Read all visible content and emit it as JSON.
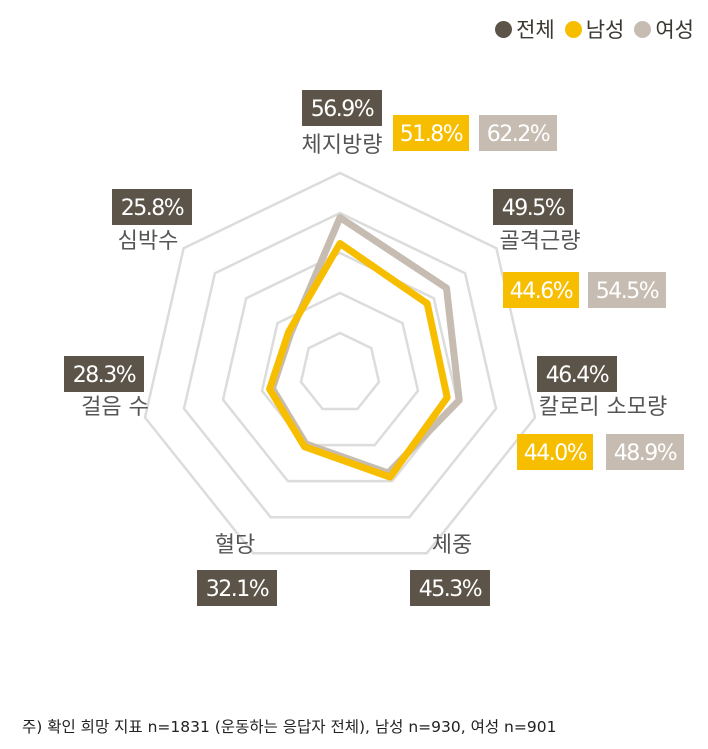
{
  "legend": [
    {
      "label": "전체",
      "color": "#5c5448"
    },
    {
      "label": "남성",
      "color": "#f7be00"
    },
    {
      "label": "여성",
      "color": "#c6bcb1"
    }
  ],
  "chart_data": {
    "type": "radar",
    "axes": [
      "체지방량",
      "골격근량",
      "칼로리 소모량",
      "체중",
      "혈당",
      "걸음 수",
      "심박수"
    ],
    "rmax": 80,
    "grid_levels": 5,
    "series": [
      {
        "name": "전체",
        "color": "#5c5448",
        "values": [
          56.9,
          49.5,
          46.4,
          45.3,
          32.1,
          28.3,
          25.8
        ],
        "labels": [
          "56.9%",
          "49.5%",
          "46.4%",
          "45.3%",
          "32.1%",
          "28.3%",
          "25.8%"
        ],
        "show_line": false
      },
      {
        "name": "남성",
        "color": "#f7be00",
        "values": [
          51.8,
          44.6,
          44.0,
          null,
          null,
          null,
          null
        ],
        "labels": [
          "51.8%",
          "44.6%",
          "44.0%"
        ],
        "show_line": true
      },
      {
        "name": "여성",
        "color": "#c6bcb1",
        "values": [
          62.2,
          54.5,
          48.9,
          null,
          null,
          null,
          null
        ],
        "labels": [
          "62.2%",
          "54.5%",
          "48.9%"
        ],
        "show_line": true
      }
    ]
  },
  "footnote": "주) 확인 희망 지표 n=1831 (운동하는 응답자 전체), 남성 n=930, 여성 n=901"
}
